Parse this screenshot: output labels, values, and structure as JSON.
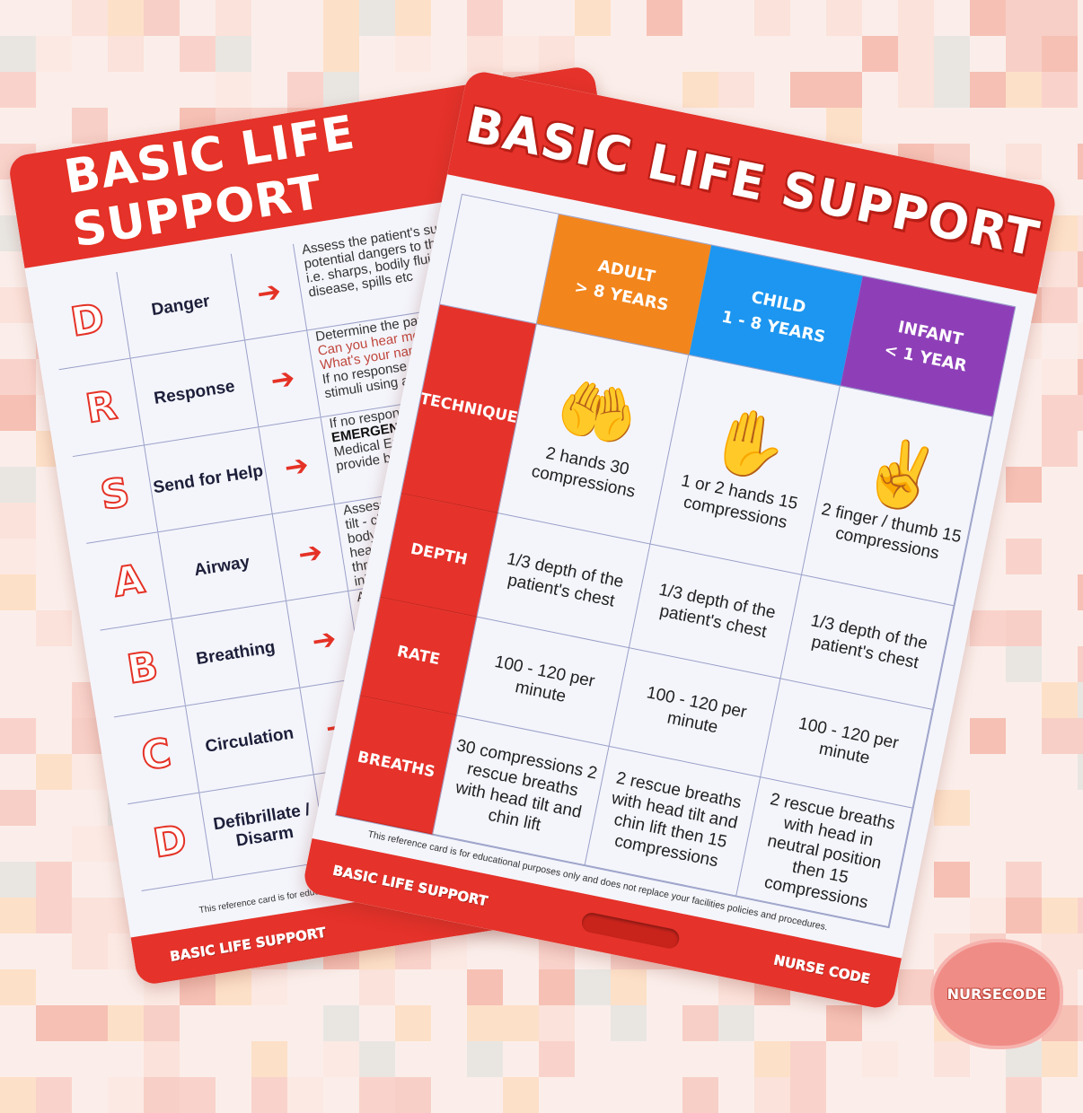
{
  "colors": {
    "card_red": "#e5322a",
    "adult": "#f2851c",
    "child": "#1c96f0",
    "infant": "#8e3fb8",
    "background": "#fbeeea"
  },
  "back_card": {
    "title": "BASIC LIFE SUPPORT",
    "rows": [
      {
        "letter": "D",
        "label": "Danger",
        "desc": [
          "Assess the patient's sur",
          "potential dangers to the p",
          "i.e. sharps, bodily fluids,",
          "disease, spills etc"
        ]
      },
      {
        "letter": "R",
        "label": "Response",
        "desc": [
          "Determine the patient",
          "Can you hear me? Op",
          "What's your name?",
          "If no response",
          "stimuli using a tra"
        ]
      },
      {
        "letter": "S",
        "label": "Send for Help",
        "desc": [
          "If no response",
          "EMERGENCY",
          "Medical Eme",
          "provide bas"
        ]
      },
      {
        "letter": "A",
        "label": "Airway",
        "desc": [
          "Assess f",
          "tilt - chi",
          "body b",
          "head",
          "thrus",
          "inju"
        ]
      },
      {
        "letter": "B",
        "label": "Breathing",
        "desc": [
          "A"
        ]
      },
      {
        "letter": "C",
        "label": "Circulation",
        "desc": [
          ""
        ]
      },
      {
        "letter": "D",
        "label": "Defibrillate / Disarm",
        "desc": [
          ""
        ]
      }
    ],
    "disclaimer": "This reference card is for educational p",
    "footer": "BASIC LIFE SUPPORT"
  },
  "front_card": {
    "title": "BASIC LIFE SUPPORT",
    "columns": [
      {
        "name": "ADULT",
        "age": "> 8 YEARS"
      },
      {
        "name": "CHILD",
        "age": "1 - 8 YEARS"
      },
      {
        "name": "INFANT",
        "age": "< 1 YEAR"
      }
    ],
    "rows": [
      {
        "label": "TECHNIQUE",
        "cells": [
          "2 hands 30 compressions",
          "1 or 2 hands 15 compressions",
          "2 finger / thumb 15 compressions"
        ],
        "icons": [
          "two-hands-icon",
          "open-hand-icon",
          "two-finger-icon"
        ]
      },
      {
        "label": "DEPTH",
        "cells": [
          "1/3 depth of the patient's chest",
          "1/3 depth of the patient's chest",
          "1/3 depth of the patient's chest"
        ]
      },
      {
        "label": "RATE",
        "cells": [
          "100 - 120 per minute",
          "100 - 120 per minute",
          "100 - 120 per minute"
        ]
      },
      {
        "label": "BREATHS",
        "cells": [
          "30 compressions 2 rescue breaths with head tilt and chin lift",
          "2 rescue breaths with head tilt and chin lift then 15 compressions",
          "2 rescue breaths with head in neutral position then 15 compressions"
        ]
      }
    ],
    "disclaimer": "This reference card is for educational purposes only and does not replace your facilities policies and procedures.",
    "footer_left": "BASIC LIFE SUPPORT",
    "footer_right": "NURSE CODE"
  },
  "badge": "NURSECODE"
}
